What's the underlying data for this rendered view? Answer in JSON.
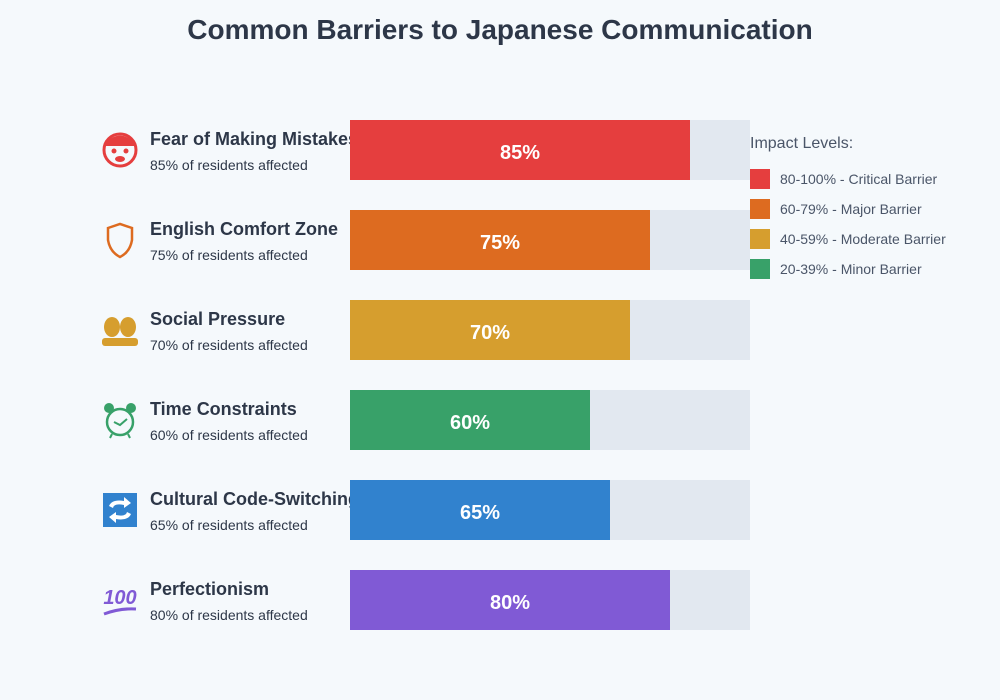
{
  "chart_data": {
    "type": "bar",
    "title": "Common Barriers to Japanese Communication",
    "orientation": "horizontal",
    "xlim": [
      0,
      100
    ],
    "categories": [
      "Fear of Making Mistakes",
      "English Comfort Zone",
      "Social Pressure",
      "Time Constraints",
      "Cultural Code-Switching",
      "Perfectionism"
    ],
    "values": [
      85,
      75,
      70,
      60,
      65,
      80
    ],
    "value_labels": [
      "85%",
      "75%",
      "70%",
      "60%",
      "65%",
      "80%"
    ],
    "subtitles": [
      "85% of residents affected",
      "75% of residents affected",
      "70% of residents affected",
      "60% of residents affected",
      "65% of residents affected",
      "80% of residents affected"
    ],
    "icons": [
      "fearful-face-icon",
      "shield-icon",
      "busts-icon",
      "alarm-clock-icon",
      "arrows-cycle-icon",
      "hundred-points-icon"
    ],
    "colors": [
      "#e53e3e",
      "#dd6b20",
      "#d69e2e",
      "#38a169",
      "#3182ce",
      "#805ad5"
    ],
    "track_color": "#e2e8f0",
    "legend": {
      "title": "Impact Levels:",
      "position": "right",
      "items": [
        {
          "label": "80-100% - Critical Barrier",
          "color": "#e53e3e"
        },
        {
          "label": "60-79% - Major Barrier",
          "color": "#dd6b20"
        },
        {
          "label": "40-59% - Moderate Barrier",
          "color": "#d69e2e"
        },
        {
          "label": "20-39% - Minor Barrier",
          "color": "#38a169"
        }
      ]
    }
  }
}
